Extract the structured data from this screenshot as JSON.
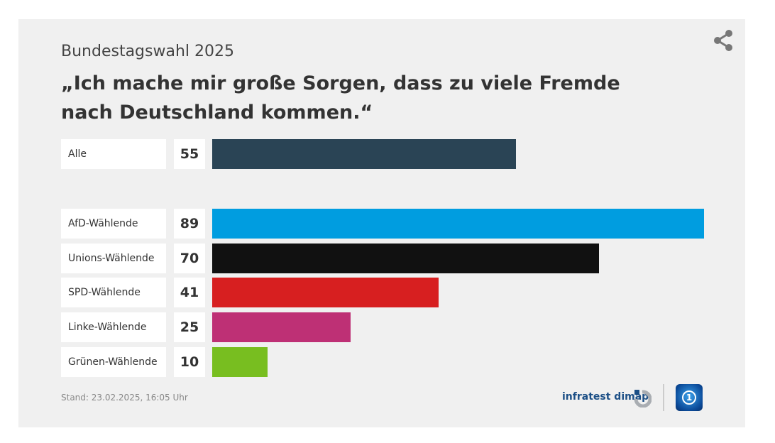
{
  "header": {
    "subtitle": "Bundestagswahl 2025",
    "title": "„Ich mache mir große Sorgen, dass zu viele Fremde nach Deutschland kommen.“"
  },
  "chart_data": {
    "type": "bar",
    "orientation": "horizontal",
    "title": "„Ich mache mir große Sorgen, dass zu viele Fremde nach Deutschland kommen.“",
    "categories": [
      "Alle",
      "AfD-Wählende",
      "Unions-Wählende",
      "SPD-Wählende",
      "Linke-Wählende",
      "Grünen-Wählende"
    ],
    "values": [
      55,
      89,
      70,
      41,
      25,
      10
    ],
    "colors": [
      "#2a4455",
      "#009de0",
      "#111111",
      "#d71f20",
      "#be3075",
      "#78be20"
    ],
    "xlim": [
      0,
      89
    ],
    "unit": "%"
  },
  "footer": {
    "stand": "Stand:  23.02.2025, 16:05 Uhr",
    "source": "infratest dimap",
    "broadcaster_logo": "1"
  }
}
